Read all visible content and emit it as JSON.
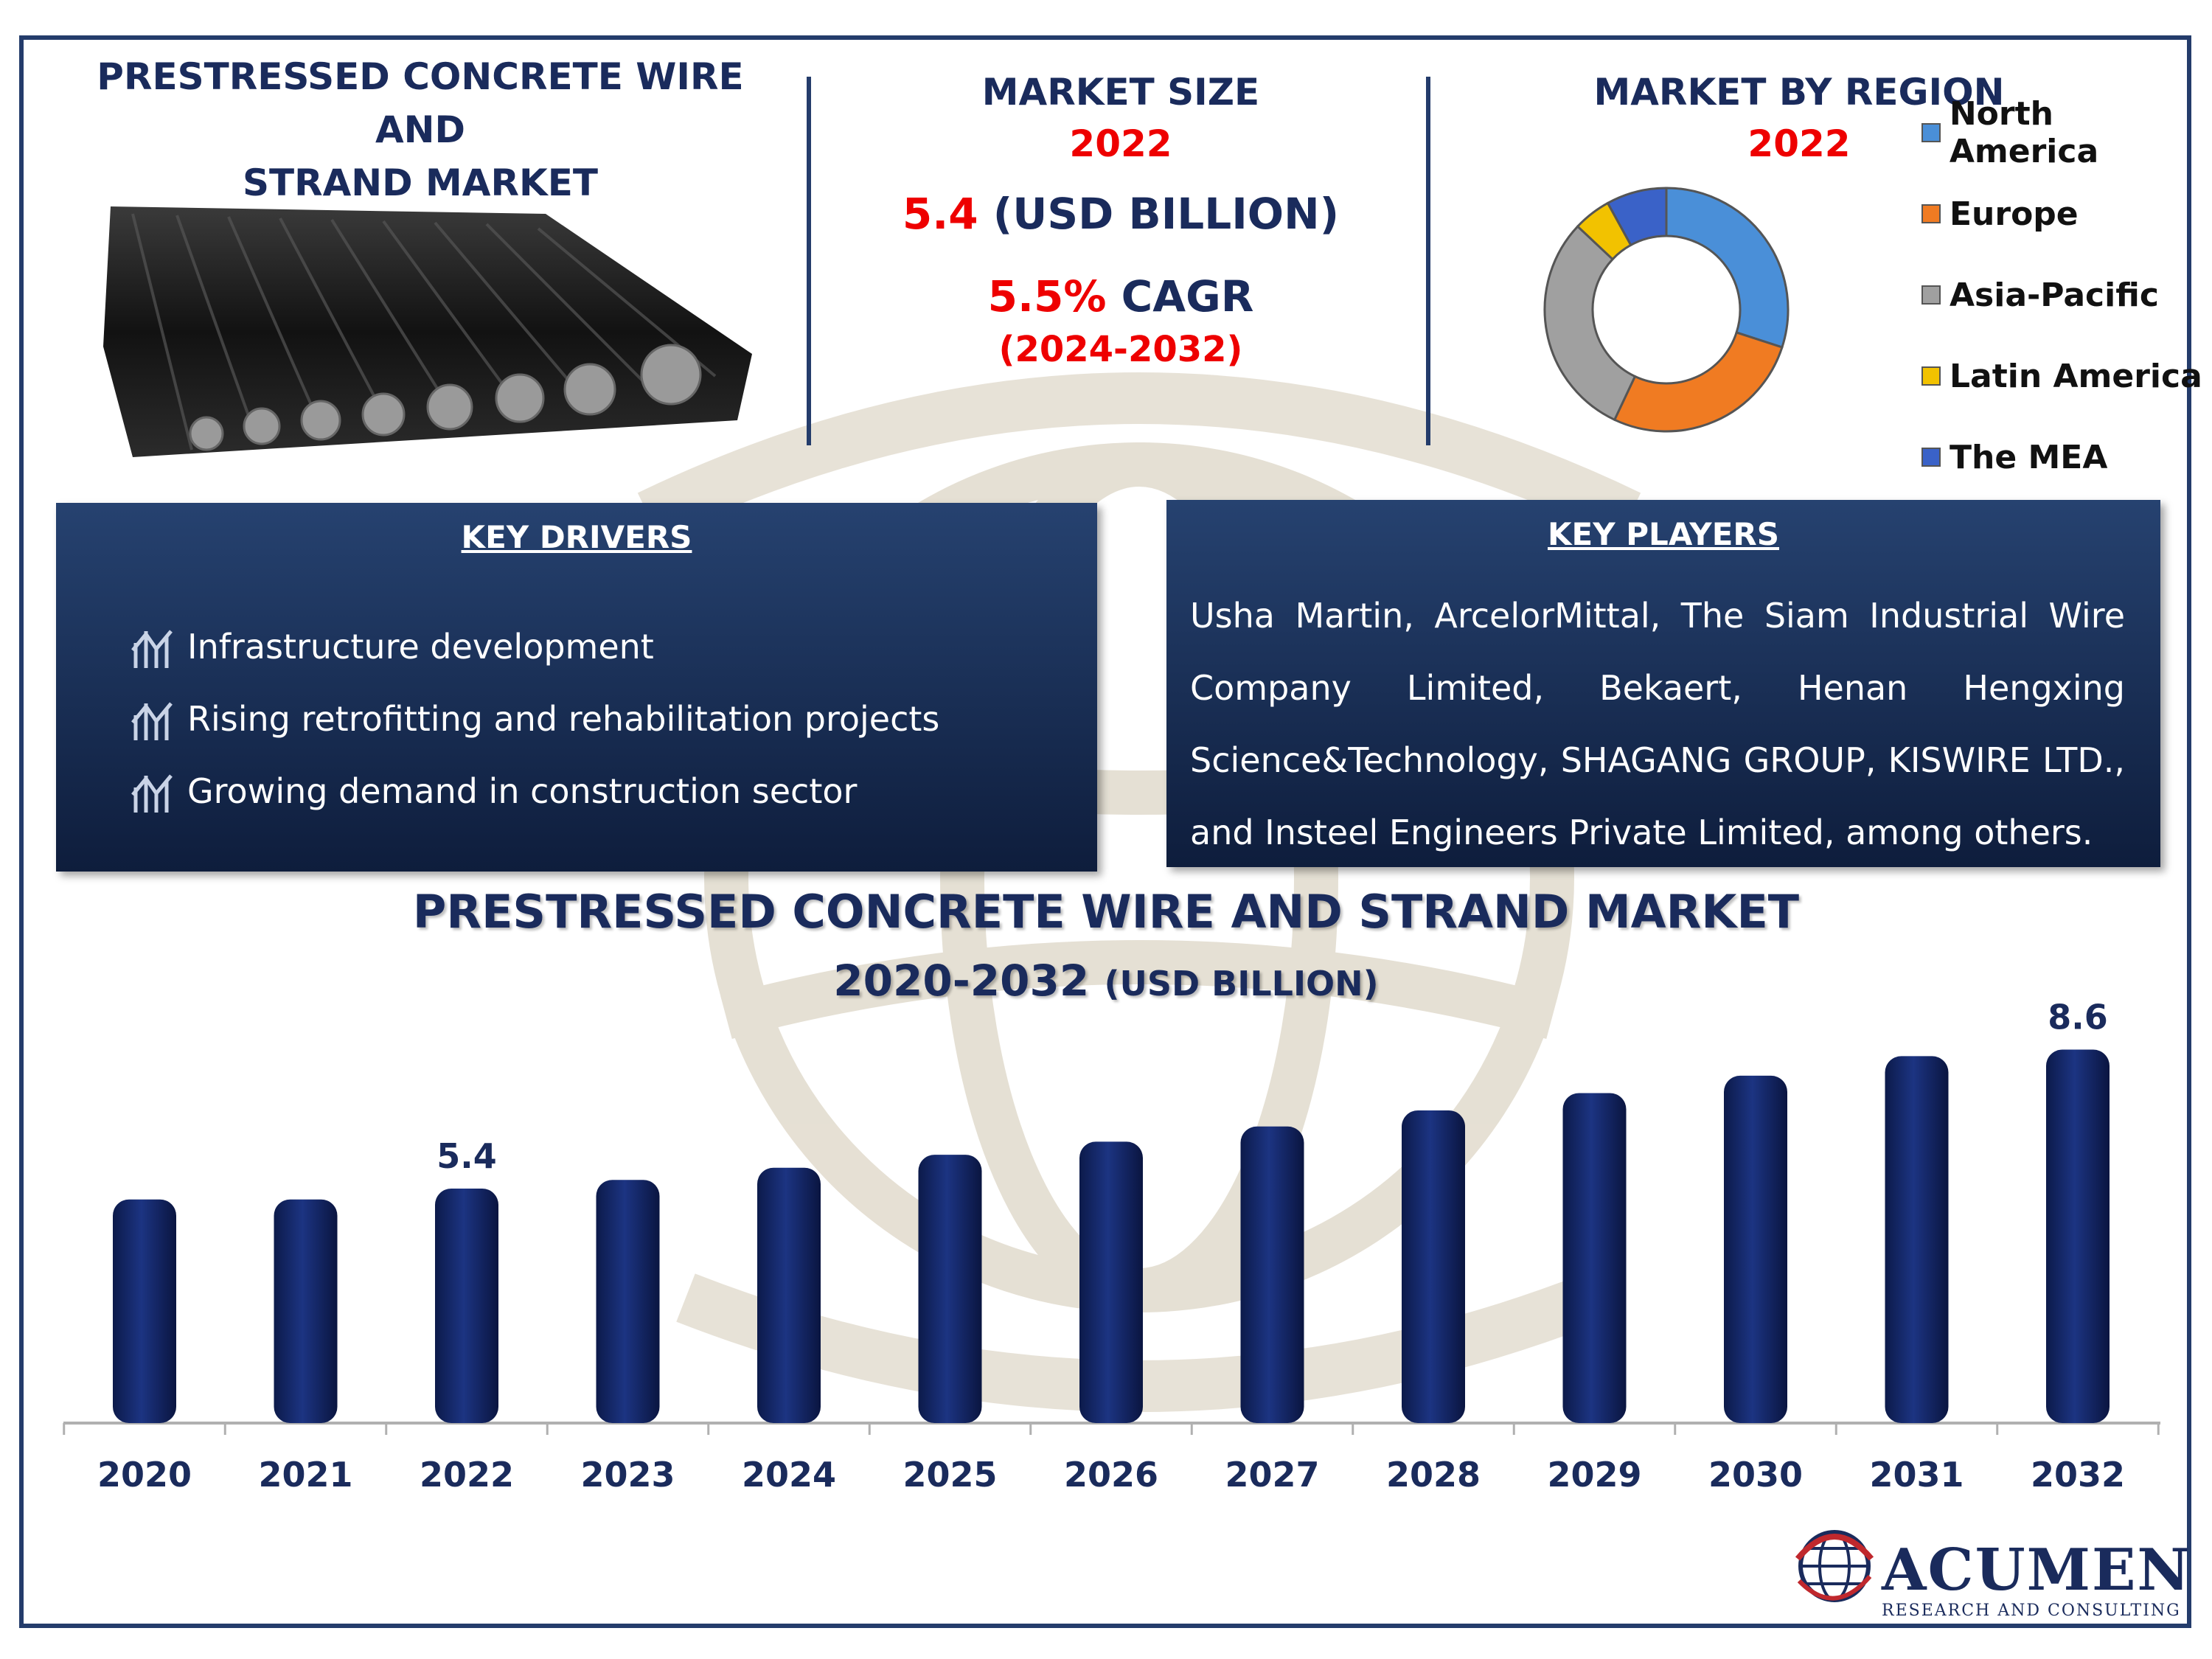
{
  "header": {
    "title": "PRESTRESSED CONCRETE WIRE AND STRAND MARKET",
    "title_line1": "PRESTRESSED CONCRETE WIRE AND",
    "title_line2": "STRAND MARKET"
  },
  "market_size": {
    "label": "MARKET SIZE",
    "year": "2022",
    "value": "5.4",
    "unit": "(USD BILLION)",
    "cagr_value": "5.5%",
    "cagr_label": "CAGR",
    "cagr_period": "(2024-2032)"
  },
  "region": {
    "title": "MARKET BY REGION",
    "year": "2022",
    "legend": [
      {
        "label": "North America",
        "color": "#4a8fd8"
      },
      {
        "label": "Europe",
        "color": "#f07b22"
      },
      {
        "label": "Asia-Pacific",
        "color": "#a0a0a0"
      },
      {
        "label": "Latin America",
        "color": "#f2c200"
      },
      {
        "label": "The MEA",
        "color": "#3a62c8"
      }
    ],
    "shares": [
      30,
      27,
      30,
      5,
      8
    ]
  },
  "key_drivers": {
    "title": "KEY DRIVERS",
    "items": [
      "Infrastructure development",
      "Rising retrofitting and rehabilitation projects",
      "Growing demand in construction sector"
    ]
  },
  "key_players": {
    "title": "KEY PLAYERS",
    "text": "Usha Martin, ArcelorMittal, The Siam Industrial Wire Company Limited, Bekaert, Henan Hengxing Science&Technology, SHAGANG GROUP, KISWIRE LTD., and Insteel Engineers Private Limited,  among others."
  },
  "chart_data": {
    "type": "bar",
    "title": "PRESTRESSED CONCRETE WIRE AND STRAND MARKET",
    "subtitle": "2020-2032",
    "subtitle_unit": "(USD BILLION)",
    "categories": [
      "2020",
      "2021",
      "2022",
      "2023",
      "2024",
      "2025",
      "2026",
      "2027",
      "2028",
      "2029",
      "2030",
      "2031",
      "2032"
    ],
    "values": [
      5.15,
      5.15,
      5.4,
      5.6,
      5.88,
      6.18,
      6.48,
      6.83,
      7.2,
      7.6,
      8.0,
      8.45,
      8.6
    ],
    "data_labels": {
      "2022": "5.4",
      "2032": "8.6"
    },
    "ylim": [
      0,
      9
    ],
    "bar_color": "#14286a",
    "grid": false
  },
  "branding": {
    "logo_name": "ACUMEN",
    "logo_tagline": "RESEARCH AND CONSULTING"
  }
}
